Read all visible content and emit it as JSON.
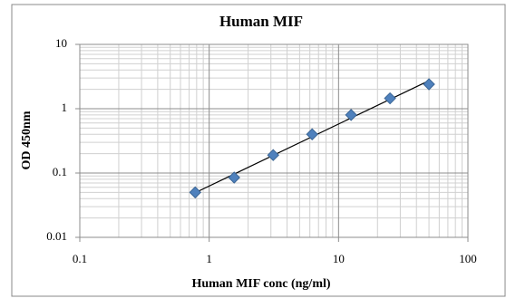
{
  "chart_data": {
    "type": "scatter",
    "title": "Human MIF",
    "x_label": "Human MIF conc (ng/ml)",
    "y_label": "OD 450nm",
    "x": [
      0.78,
      1.56,
      3.125,
      6.25,
      12.5,
      25,
      50
    ],
    "series": [
      {
        "color": "#4f81bd",
        "values": [
          0.05,
          0.085,
          0.19,
          0.4,
          0.8,
          1.45,
          2.4
        ]
      }
    ],
    "xlim": [
      0.1,
      100
    ],
    "ylim": [
      0.01,
      10
    ],
    "xticks": [
      0.1,
      1,
      10,
      100
    ],
    "yticks": [
      0.01,
      0.1,
      1,
      10
    ],
    "log_x": true,
    "log_y": true,
    "grid": true,
    "minor_grid": true,
    "trendline": "power"
  }
}
